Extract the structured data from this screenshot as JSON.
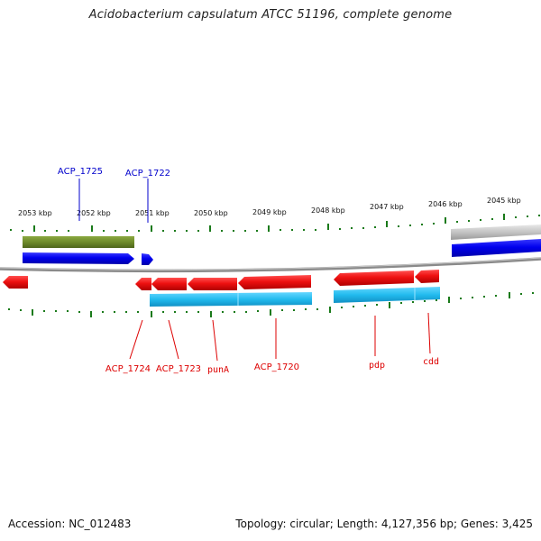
{
  "title": "Acidobacterium capsulatum ATCC 51196, complete genome",
  "footer": {
    "accession": "Accession: NC_012483",
    "summary": "Topology: circular; Length: 4,127,356 bp; Genes: 3,425"
  },
  "scale_labels": [
    "2053 kbp",
    "2052 kbp",
    "2051 kbp",
    "2050 kbp",
    "2049 kbp",
    "2048 kbp",
    "2047 kbp",
    "2046 kbp",
    "2045 kbp"
  ],
  "top_gene_labels": [
    "ACP_1725",
    "ACP_1722"
  ],
  "bottom_gene_labels": [
    "ACP_1724",
    "ACP_1723",
    "punA",
    "ACP_1720",
    "pdp",
    "cdd"
  ],
  "colors": {
    "forward_gene": "#0000ee",
    "reverse_gene": "#ee1111",
    "forward_cds_track": "#6e8b2a",
    "reverse_cds_track": "#22bbee",
    "backbone": "#888888",
    "ticks": "#1a7a1a",
    "top_label": "#0000cc",
    "bottom_label": "#dd0000"
  }
}
